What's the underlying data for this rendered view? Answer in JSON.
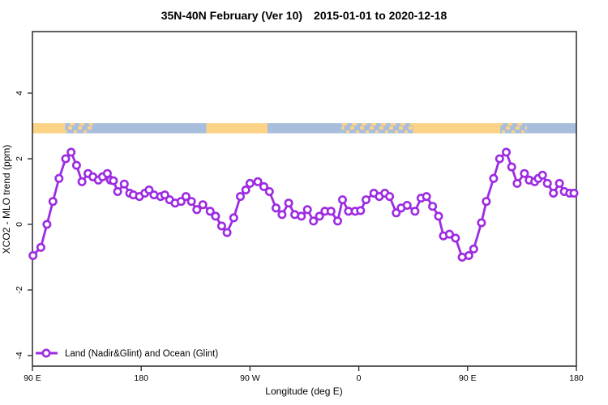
{
  "title": {
    "region_period": "35N-40N February (Ver 10)",
    "date_range": "2015-01-01 to 2020-12-18"
  },
  "colors": {
    "series": "#9D2BE2",
    "marker_fill": "#FFFFFF",
    "land_band": "#FBD286",
    "ocean_band": "#A8BEDC",
    "axis": "#363636"
  },
  "chart_data": {
    "type": "line",
    "title": "35N-40N February (Ver 10)  2015-01-01 to 2020-12-18",
    "xlabel": "Longitude (deg E)",
    "ylabel": "XCO2 - MLO trend (ppm)",
    "xlim": [
      90,
      540
    ],
    "ylim": [
      -4.3,
      5.9
    ],
    "grid": false,
    "x_ticks": [
      {
        "lon": 90,
        "label": "90 E"
      },
      {
        "lon": 180,
        "label": "180"
      },
      {
        "lon": 270,
        "label": "90 W"
      },
      {
        "lon": 360,
        "label": "0"
      },
      {
        "lon": 450,
        "label": "90 E"
      },
      {
        "lon": 540,
        "label": "180"
      }
    ],
    "y_ticks": [
      4,
      2,
      0,
      -2,
      -4
    ],
    "legend": {
      "position": "bottom-left",
      "entries": [
        {
          "label": "Land (Nadir&Glint) and Ocean (Glint)",
          "color": "#9D2BE2",
          "marker": "open-circle-on-line"
        }
      ]
    },
    "surface_band": {
      "y_value": 2.93,
      "note": "land/ocean strip along 35N-40N",
      "segments": [
        {
          "start": 90,
          "end": 117,
          "type": "land"
        },
        {
          "start": 117,
          "end": 140,
          "type": "mixed"
        },
        {
          "start": 140,
          "end": 234,
          "type": "ocean"
        },
        {
          "start": 234,
          "end": 284.5,
          "type": "land"
        },
        {
          "start": 284.5,
          "end": 346,
          "type": "ocean"
        },
        {
          "start": 346,
          "end": 405,
          "type": "mixed"
        },
        {
          "start": 405,
          "end": 477,
          "type": "land"
        },
        {
          "start": 477,
          "end": 499,
          "type": "mixed"
        },
        {
          "start": 499,
          "end": 540,
          "type": "ocean"
        }
      ]
    },
    "series": [
      {
        "name": "Land (Nadir&Glint) and Ocean (Glint)",
        "points": [
          [
            90.5,
            -0.95
          ],
          [
            97,
            -0.7
          ],
          [
            102,
            0.0
          ],
          [
            107,
            0.7
          ],
          [
            112,
            1.4
          ],
          [
            117.5,
            2.0
          ],
          [
            122,
            2.2
          ],
          [
            126.5,
            1.8
          ],
          [
            131,
            1.3
          ],
          [
            136,
            1.55
          ],
          [
            140,
            1.45
          ],
          [
            144.5,
            1.35
          ],
          [
            148,
            1.45
          ],
          [
            152,
            1.55
          ],
          [
            154.5,
            1.35
          ],
          [
            157,
            1.33
          ],
          [
            160.5,
            1.0
          ],
          [
            166,
            1.23
          ],
          [
            170.5,
            0.95
          ],
          [
            173.5,
            0.9
          ],
          [
            178.5,
            0.85
          ],
          [
            183,
            0.95
          ],
          [
            186.5,
            1.05
          ],
          [
            190.5,
            0.9
          ],
          [
            196,
            0.85
          ],
          [
            199.5,
            0.9
          ],
          [
            203.5,
            0.75
          ],
          [
            208,
            0.65
          ],
          [
            213,
            0.7
          ],
          [
            217,
            0.85
          ],
          [
            221.5,
            0.7
          ],
          [
            226,
            0.45
          ],
          [
            231,
            0.6
          ],
          [
            237,
            0.4
          ],
          [
            241.5,
            0.25
          ],
          [
            246.5,
            -0.05
          ],
          [
            251,
            -0.25
          ],
          [
            256.5,
            0.2
          ],
          [
            262,
            0.85
          ],
          [
            266.5,
            1.05
          ],
          [
            270,
            1.25
          ],
          [
            276.5,
            1.3
          ],
          [
            281.5,
            1.15
          ],
          [
            286,
            1.0
          ],
          [
            291.5,
            0.5
          ],
          [
            296.5,
            0.3
          ],
          [
            302,
            0.65
          ],
          [
            307,
            0.3
          ],
          [
            312.5,
            0.25
          ],
          [
            317.5,
            0.45
          ],
          [
            322.5,
            0.1
          ],
          [
            327.5,
            0.25
          ],
          [
            332,
            0.4
          ],
          [
            337,
            0.4
          ],
          [
            342.5,
            0.1
          ],
          [
            346.5,
            0.75
          ],
          [
            351.5,
            0.4
          ],
          [
            357,
            0.4
          ],
          [
            361.5,
            0.42
          ],
          [
            366,
            0.75
          ],
          [
            372.5,
            0.95
          ],
          [
            377,
            0.85
          ],
          [
            381.5,
            0.95
          ],
          [
            385.5,
            0.85
          ],
          [
            391,
            0.35
          ],
          [
            395,
            0.5
          ],
          [
            400,
            0.58
          ],
          [
            406.5,
            0.4
          ],
          [
            411.5,
            0.8
          ],
          [
            416,
            0.85
          ],
          [
            421,
            0.55
          ],
          [
            426,
            0.25
          ],
          [
            430,
            -0.35
          ],
          [
            435,
            -0.3
          ],
          [
            440,
            -0.42
          ],
          [
            445.5,
            -1.0
          ],
          [
            451,
            -0.95
          ],
          [
            455,
            -0.75
          ],
          [
            461.5,
            0.05
          ],
          [
            465.5,
            0.7
          ],
          [
            471.5,
            1.4
          ],
          [
            476.5,
            2.0
          ],
          [
            482,
            2.2
          ],
          [
            486.5,
            1.75
          ],
          [
            491,
            1.25
          ],
          [
            497,
            1.55
          ],
          [
            501,
            1.35
          ],
          [
            505.5,
            1.3
          ],
          [
            508.5,
            1.4
          ],
          [
            512,
            1.5
          ],
          [
            516,
            1.25
          ],
          [
            521,
            0.95
          ],
          [
            526,
            1.25
          ],
          [
            530,
            1.0
          ],
          [
            534.5,
            0.95
          ],
          [
            538,
            0.95
          ]
        ]
      }
    ]
  }
}
